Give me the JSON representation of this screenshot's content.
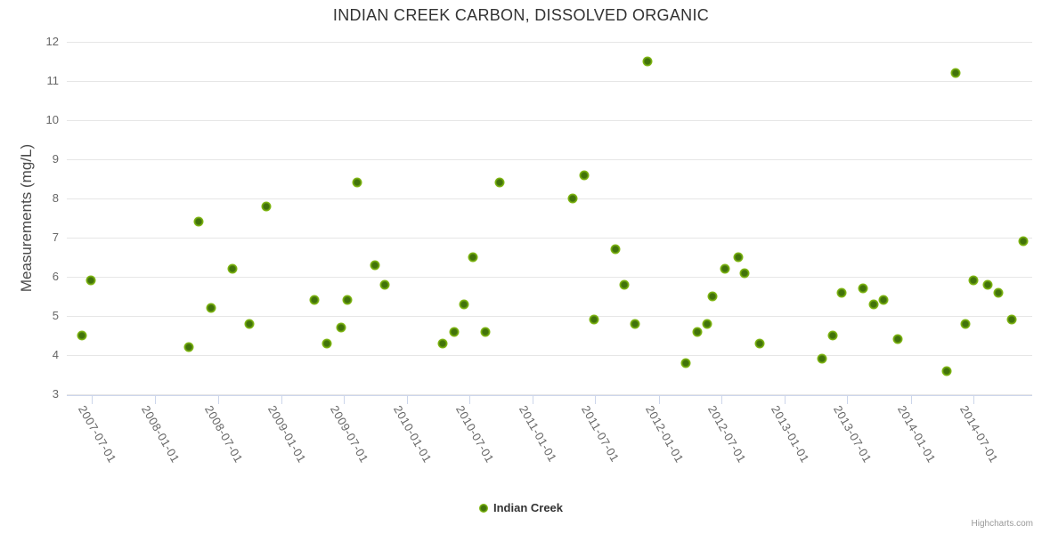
{
  "title": "INDIAN CREEK CARBON, DISSOLVED ORGANIC",
  "credit": "Highcharts.com",
  "colors": {
    "marker_outer": "#82b914",
    "marker_inner": "#41730a",
    "gridline": "#e6e6e6",
    "axis_line": "#ccd6eb",
    "tick_label": "#666666",
    "title": "#333333",
    "credit": "#999999"
  },
  "chart_data": {
    "type": "scatter",
    "title": "INDIAN CREEK CARBON, DISSOLVED ORGANIC",
    "xlabel": "",
    "ylabel": "Measurements (mg/L)",
    "ylim": [
      3,
      12
    ],
    "grid": true,
    "legend_position": "bottom-center",
    "y_ticks": [
      12,
      11,
      10,
      9,
      8,
      7,
      6,
      5,
      4,
      3
    ],
    "x_ticks": [
      "2007-07-01",
      "2008-01-01",
      "2008-07-01",
      "2009-01-01",
      "2009-07-01",
      "2010-01-01",
      "2010-07-01",
      "2011-01-01",
      "2011-07-01",
      "2012-01-01",
      "2012-07-01",
      "2013-01-01",
      "2013-07-01",
      "2014-01-01",
      "2014-07-01"
    ],
    "x_range": [
      "2007-04-20",
      "2014-12-19"
    ],
    "series": [
      {
        "name": "Indian Creek",
        "points": [
          {
            "date": "2007-06-02",
            "value": 4.5
          },
          {
            "date": "2007-06-28",
            "value": 5.9
          },
          {
            "date": "2008-04-08",
            "value": 4.2
          },
          {
            "date": "2008-05-06",
            "value": 7.4
          },
          {
            "date": "2008-06-11",
            "value": 5.2
          },
          {
            "date": "2008-08-12",
            "value": 6.2
          },
          {
            "date": "2008-09-30",
            "value": 4.8
          },
          {
            "date": "2008-11-18",
            "value": 7.8
          },
          {
            "date": "2009-04-07",
            "value": 5.4
          },
          {
            "date": "2009-05-13",
            "value": 4.3
          },
          {
            "date": "2009-06-23",
            "value": 4.7
          },
          {
            "date": "2009-07-11",
            "value": 5.4
          },
          {
            "date": "2009-08-08",
            "value": 8.4
          },
          {
            "date": "2009-09-29",
            "value": 6.3
          },
          {
            "date": "2009-10-27",
            "value": 5.8
          },
          {
            "date": "2010-04-13",
            "value": 4.3
          },
          {
            "date": "2010-05-17",
            "value": 4.6
          },
          {
            "date": "2010-06-14",
            "value": 5.3
          },
          {
            "date": "2010-07-12",
            "value": 6.5
          },
          {
            "date": "2010-08-15",
            "value": 4.6
          },
          {
            "date": "2010-09-26",
            "value": 8.4
          },
          {
            "date": "2011-04-26",
            "value": 8.0
          },
          {
            "date": "2011-05-29",
            "value": 8.6
          },
          {
            "date": "2011-06-26",
            "value": 4.9
          },
          {
            "date": "2011-08-28",
            "value": 6.7
          },
          {
            "date": "2011-09-22",
            "value": 5.8
          },
          {
            "date": "2011-10-23",
            "value": 4.8
          },
          {
            "date": "2011-11-29",
            "value": 11.5
          },
          {
            "date": "2012-03-19",
            "value": 3.8
          },
          {
            "date": "2012-04-22",
            "value": 4.6
          },
          {
            "date": "2012-05-20",
            "value": 4.8
          },
          {
            "date": "2012-06-04",
            "value": 5.5
          },
          {
            "date": "2012-07-11",
            "value": 6.2
          },
          {
            "date": "2012-08-18",
            "value": 6.5
          },
          {
            "date": "2012-09-05",
            "value": 6.1
          },
          {
            "date": "2012-10-20",
            "value": 4.3
          },
          {
            "date": "2013-04-18",
            "value": 3.9
          },
          {
            "date": "2013-05-19",
            "value": 4.5
          },
          {
            "date": "2013-06-14",
            "value": 5.6
          },
          {
            "date": "2013-08-15",
            "value": 5.7
          },
          {
            "date": "2013-09-15",
            "value": 5.3
          },
          {
            "date": "2013-10-14",
            "value": 5.4
          },
          {
            "date": "2013-11-24",
            "value": 4.4
          },
          {
            "date": "2014-04-15",
            "value": 3.6
          },
          {
            "date": "2014-05-11",
            "value": 11.2
          },
          {
            "date": "2014-06-08",
            "value": 4.8
          },
          {
            "date": "2014-07-01",
            "value": 5.9
          },
          {
            "date": "2014-08-11",
            "value": 5.8
          },
          {
            "date": "2014-09-11",
            "value": 5.6
          },
          {
            "date": "2014-10-20",
            "value": 4.9
          },
          {
            "date": "2014-11-22",
            "value": 6.9
          }
        ]
      }
    ]
  }
}
